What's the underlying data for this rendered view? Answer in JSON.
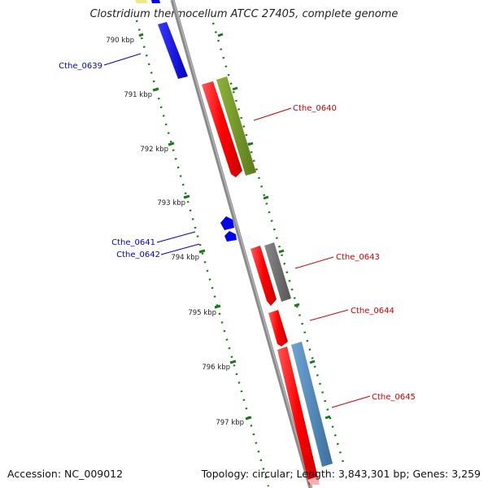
{
  "title": "Clostridium thermocellum ATCC 27405, complete genome",
  "footer": {
    "accession_label": "Accession:",
    "accession": "NC_009012",
    "topology_label": "Topology:",
    "topology": "circular",
    "length_label": "Length:",
    "length": "3,843,301 bp",
    "genes_label": "Genes:",
    "genes": "3,259"
  },
  "scale": {
    "unit": "kbp",
    "ticks": [
      "790 kbp",
      "791 kbp",
      "792 kbp",
      "793 kbp",
      "794 kbp",
      "795 kbp",
      "796 kbp",
      "797 kbp"
    ]
  },
  "genes": [
    {
      "label": "Cthe_0639",
      "strand": "minus"
    },
    {
      "label": "Cthe_0640",
      "strand": "plus"
    },
    {
      "label": "Cthe_0641",
      "strand": "minus"
    },
    {
      "label": "Cthe_0642",
      "strand": "minus"
    },
    {
      "label": "Cthe_0643",
      "strand": "plus"
    },
    {
      "label": "Cthe_0644",
      "strand": "plus"
    },
    {
      "label": "Cthe_0645",
      "strand": "plus"
    }
  ],
  "colors": {
    "backbone": "#808080",
    "tick_green": "#1a7a1a",
    "cds_red": "#ff0000",
    "minus_blue": "#0000ee",
    "label_red": "#cc0000",
    "label_blue": "#0000cc",
    "olive": "#6b8e23",
    "gray": "#707070",
    "steelblue": "#4682b4",
    "pale_yellow": "#f0e68c"
  }
}
